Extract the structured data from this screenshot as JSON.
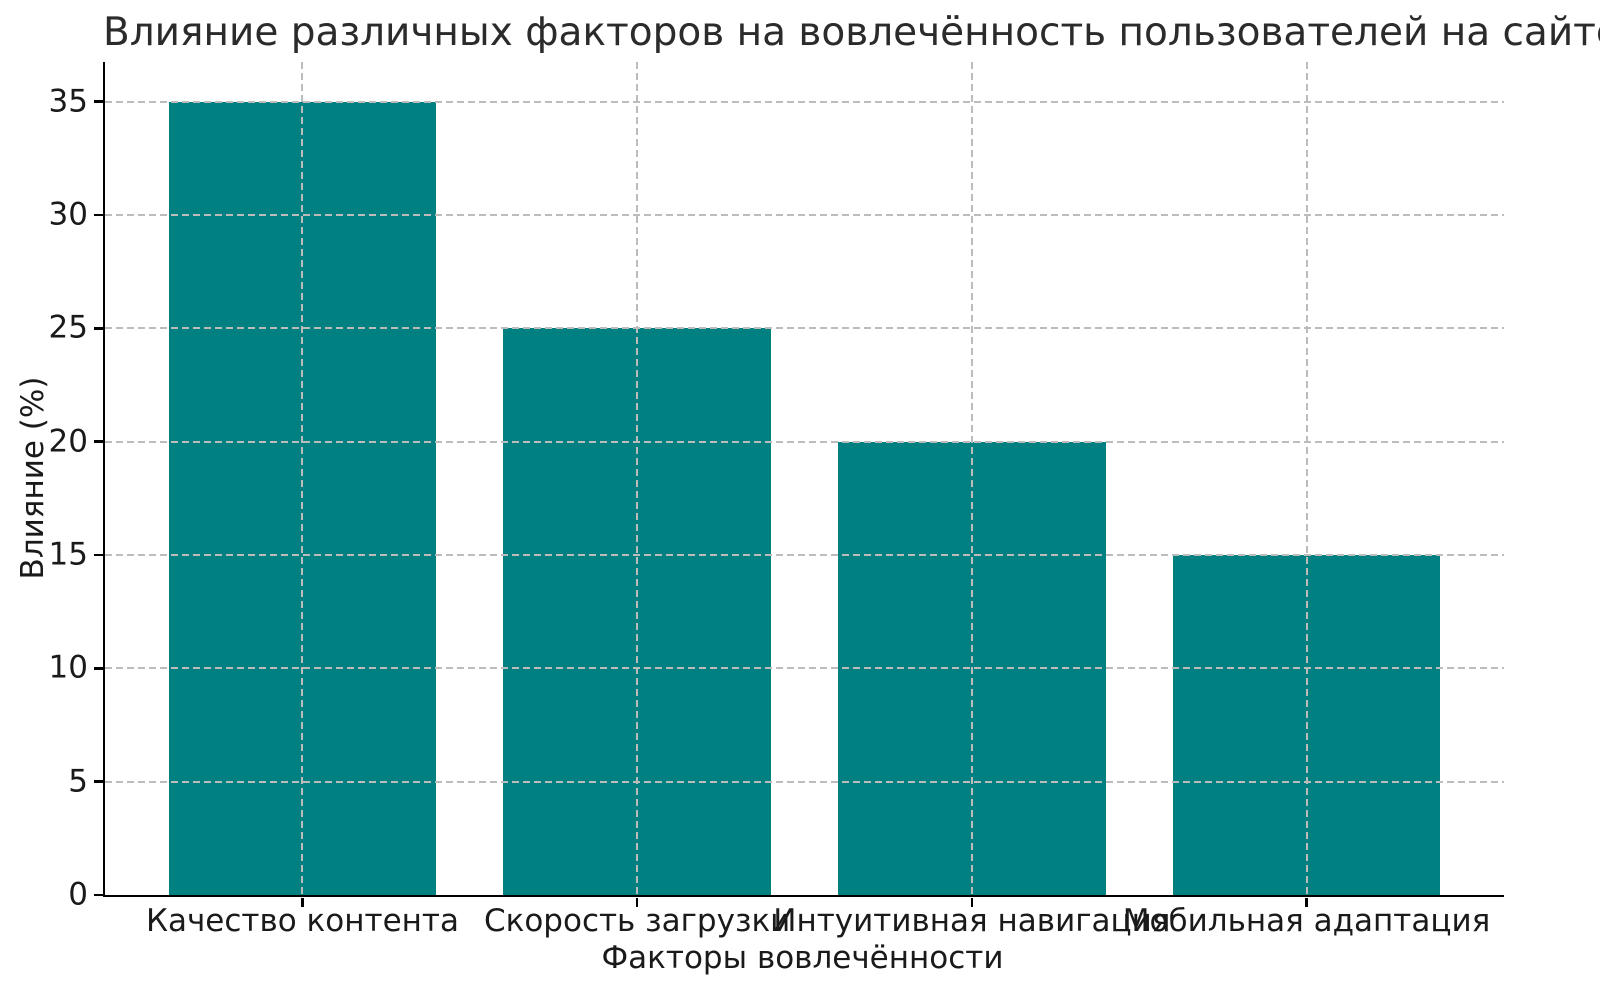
{
  "chart_data": {
    "type": "bar",
    "title": "Влияние различных факторов на вовлечённость пользователей на сайте",
    "categories": [
      "Качество контента",
      "Скорость загрузки",
      "Интуитивная навигация",
      "Мобильная адаптация"
    ],
    "values": [
      35,
      25,
      20,
      15
    ],
    "xlabel": "Факторы вовлечённости",
    "ylabel": "Влияние (%)",
    "ylim": [
      0,
      36.75
    ],
    "yticks": [
      0,
      5,
      10,
      15,
      20,
      25,
      30,
      35
    ],
    "grid": true,
    "grid_style": "dashed",
    "grid_above_bars": true,
    "legend": false,
    "colors": {
      "bar": "#008080",
      "grid": "#bcbcbc",
      "spine": "#000000",
      "text": "#212121",
      "background": "#ffffff"
    }
  }
}
